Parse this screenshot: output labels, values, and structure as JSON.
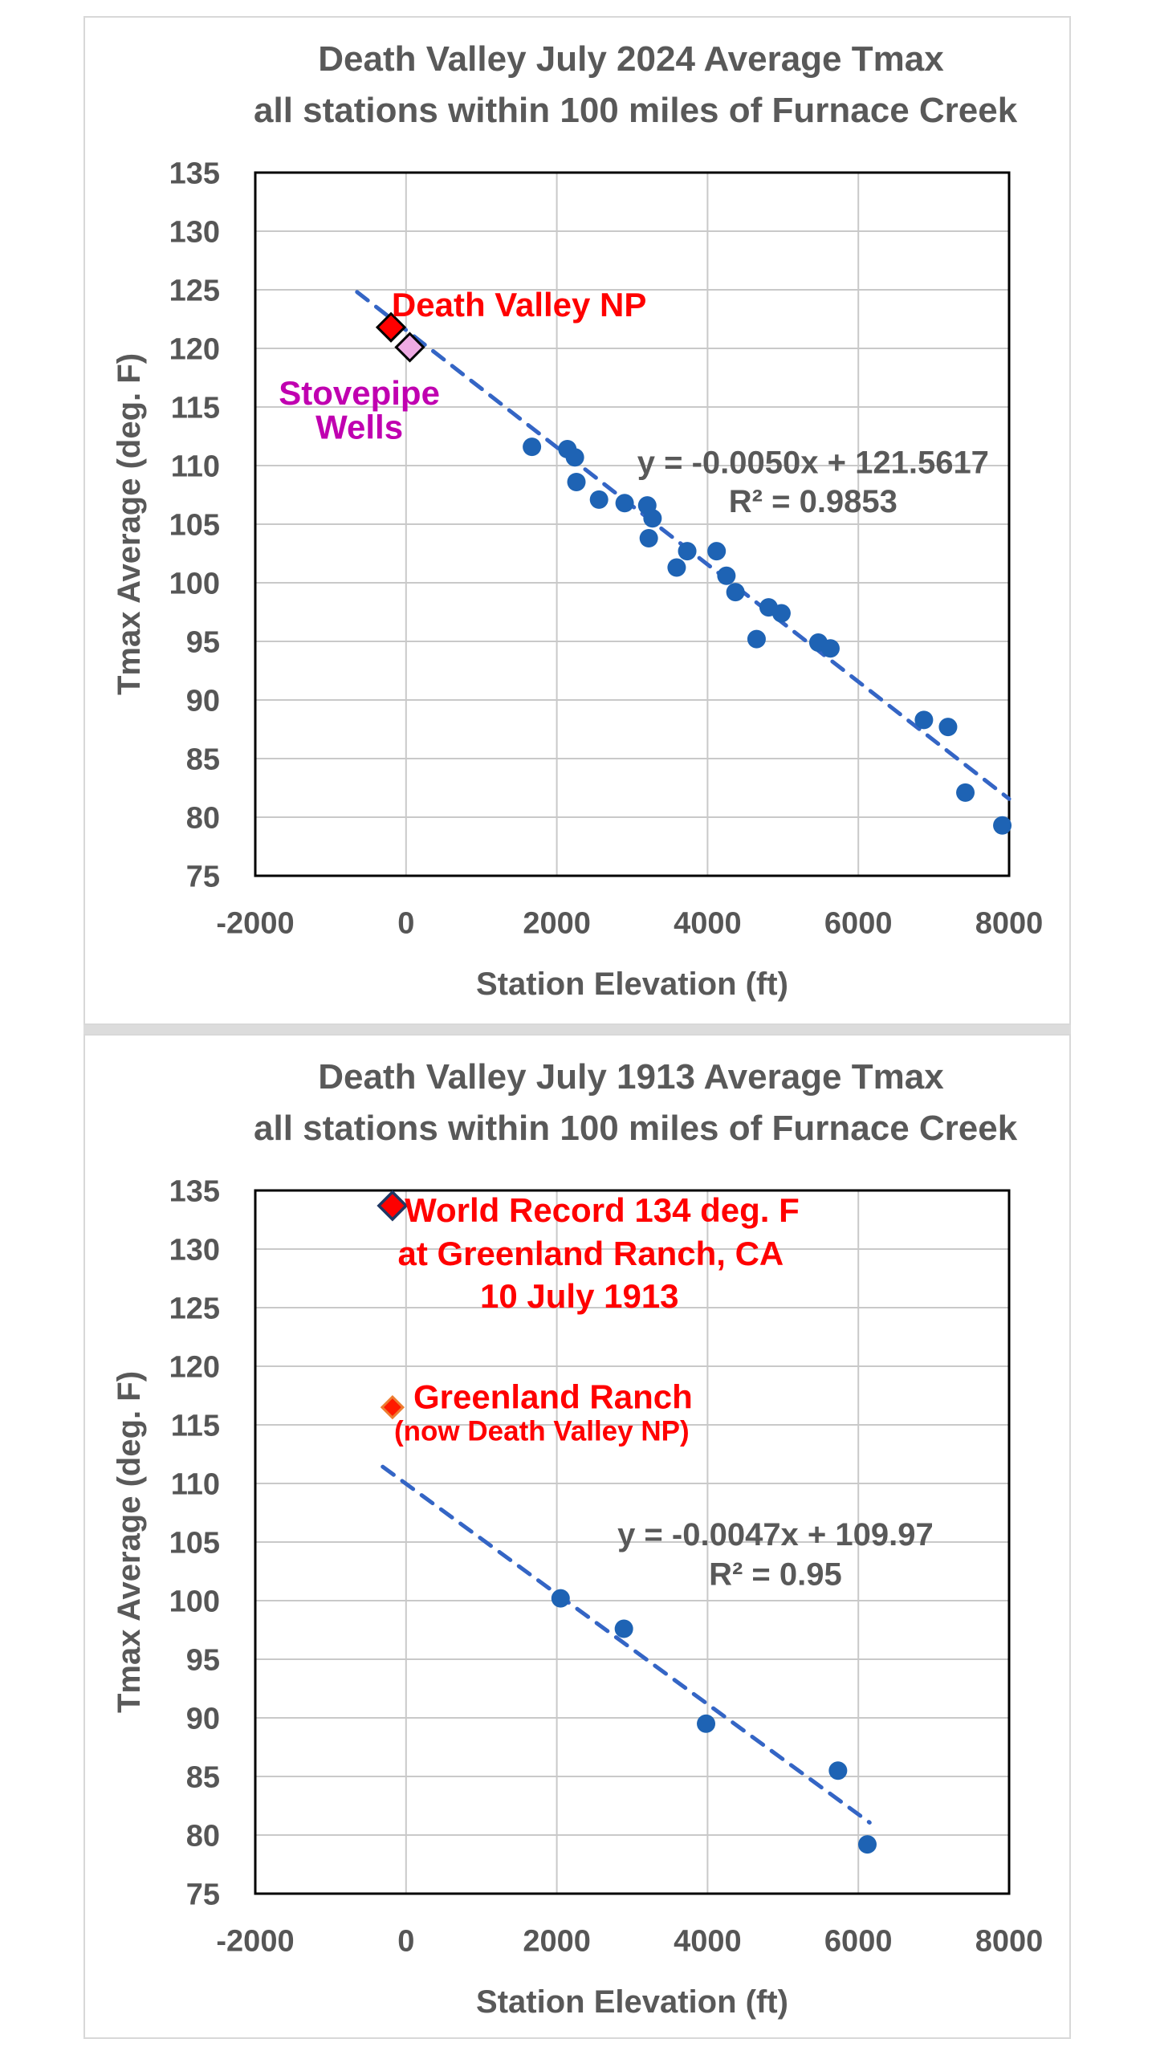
{
  "page": {
    "background": "#ffffff",
    "panel_border_color": "#d8d8d8",
    "divider_color": "#dcdcdc"
  },
  "chart_data": [
    {
      "type": "scatter",
      "title": "Death Valley July 2024 Average Tmax",
      "subtitle": "all stations within 100 miles of Furnace Creek",
      "xlabel": "Station Elevation (ft)",
      "ylabel": "Tmax Average (deg. F)",
      "x_axis": {
        "min": -2000,
        "max": 8000,
        "ticks": [
          -2000,
          0,
          2000,
          4000,
          6000,
          8000
        ]
      },
      "y_axis": {
        "min": 75,
        "max": 135,
        "ticks": [
          75,
          80,
          85,
          90,
          95,
          100,
          105,
          110,
          115,
          120,
          125,
          130,
          135
        ]
      },
      "grid": true,
      "legend": "none",
      "style": {
        "grid_color": "#c9c9c9",
        "border_color": "#000000",
        "tick_color": "#565656",
        "axis_title_color": "#595959"
      },
      "series": [
        {
          "name": "all stations July 2024",
          "marker": "circle",
          "color": "#1e63b4",
          "radius": 11.5,
          "points": [
            [
              1670,
              111.6
            ],
            [
              2140,
              111.4
            ],
            [
              2240,
              110.7
            ],
            [
              2260,
              108.6
            ],
            [
              2560,
              107.1
            ],
            [
              2900,
              106.8
            ],
            [
              3200,
              106.6
            ],
            [
              3220,
              103.8
            ],
            [
              3270,
              105.5
            ],
            [
              3590,
              101.3
            ],
            [
              3730,
              102.7
            ],
            [
              4120,
              102.7
            ],
            [
              4250,
              100.6
            ],
            [
              4370,
              99.2
            ],
            [
              4650,
              95.2
            ],
            [
              4810,
              97.9
            ],
            [
              4980,
              97.4
            ],
            [
              5470,
              94.9
            ],
            [
              5630,
              94.4
            ],
            [
              6870,
              88.3
            ],
            [
              7190,
              87.7
            ],
            [
              7420,
              82.1
            ],
            [
              7910,
              79.3
            ]
          ]
        },
        {
          "name": "Death Valley NP",
          "marker": "diamond",
          "fill": "#ff0000",
          "stroke": "#000000",
          "stroke_width": 3,
          "half_size": 17,
          "points": [
            [
              -200,
              121.8
            ]
          ]
        },
        {
          "name": "Stovepipe Wells",
          "marker": "diamond",
          "fill": "#eeaae3",
          "stroke": "#000000",
          "stroke_width": 3,
          "half_size": 17,
          "points": [
            [
              50,
              120.1
            ]
          ]
        }
      ],
      "trendline": {
        "equation": "y = -0.0050x + 121.5617",
        "r2_label": "R² = 0.9853",
        "slope": -0.005,
        "intercept": 121.5617,
        "r_squared": 0.9853,
        "x_start": -650,
        "x_end": 8000,
        "color": "#3465c5",
        "dash": "17 13",
        "width": 5
      },
      "annotations": [
        {
          "name": "label-death-valley-np",
          "text": "Death Valley NP",
          "color": "#ff0000",
          "font_size": 42,
          "x": 1500,
          "y": 123.75
        },
        {
          "name": "label-stovepipe-line1",
          "text": "Stovepipe",
          "color": "#c000b0",
          "font_size": 42,
          "x": -620,
          "y": 116.2
        },
        {
          "name": "label-stovepipe-line2",
          "text": "Wells",
          "color": "#c000b0",
          "font_size": 42,
          "x": -620,
          "y": 113.3
        },
        {
          "name": "trendline-equation",
          "text": "y = -0.0050x + 121.5617",
          "color": "#595959",
          "font_size": 40,
          "x": 5400,
          "y": 110.3
        },
        {
          "name": "trendline-r2",
          "text": "R² = 0.9853",
          "color": "#595959",
          "font_size": 40,
          "x": 5400,
          "y": 107.0
        }
      ]
    },
    {
      "type": "scatter",
      "title": "Death Valley July 1913 Average Tmax",
      "subtitle": "all stations within 100 miles of Furnace Creek",
      "xlabel": "Station Elevation (ft)",
      "ylabel": "Tmax Average (deg. F)",
      "x_axis": {
        "min": -2000,
        "max": 8000,
        "ticks": [
          -2000,
          0,
          2000,
          4000,
          6000,
          8000
        ]
      },
      "y_axis": {
        "min": 75,
        "max": 135,
        "ticks": [
          75,
          80,
          85,
          90,
          95,
          100,
          105,
          110,
          115,
          120,
          125,
          130,
          135
        ]
      },
      "grid": true,
      "legend": "none",
      "style": {
        "grid_color": "#c9c9c9",
        "border_color": "#000000",
        "tick_color": "#565656",
        "axis_title_color": "#595959"
      },
      "series": [
        {
          "name": "all stations July 1913",
          "marker": "circle",
          "color": "#1e63b4",
          "radius": 11.5,
          "points": [
            [
              2050,
              100.2
            ],
            [
              2890,
              97.6
            ],
            [
              3980,
              89.5
            ],
            [
              5730,
              85.5
            ],
            [
              6120,
              79.2
            ]
          ]
        },
        {
          "name": "World Record 134 deg. F at Greenland Ranch, CA 10 July 1913",
          "marker": "diamond",
          "fill": "#fe0000",
          "stroke": "#1f3864",
          "stroke_width": 3.5,
          "half_size": 17,
          "points": [
            [
              -180,
              133.7
            ]
          ]
        },
        {
          "name": "Greenland Ranch",
          "marker": "diamond",
          "fill": "#ff1a00",
          "stroke": "#ed7d31",
          "stroke_width": 3,
          "half_size": 13,
          "points": [
            [
              -180,
              116.5
            ]
          ]
        }
      ],
      "trendline": {
        "equation": "y = -0.0047x + 109.97",
        "r2_label": "R² = 0.95",
        "slope": -0.0047,
        "intercept": 109.97,
        "r_squared": 0.95,
        "x_start": -310,
        "x_end": 6150,
        "color": "#3465c5",
        "dash": "17 13",
        "width": 5
      },
      "annotations": [
        {
          "name": "label-world-record-line1",
          "text": "World Record 134 deg. F",
          "color": "#ff0000",
          "font_size": 42,
          "x": 2600,
          "y": 133.35
        },
        {
          "name": "label-world-record-line2",
          "text": "at Greenland Ranch, CA",
          "color": "#ff0000",
          "font_size": 42,
          "x": 2450,
          "y": 129.65
        },
        {
          "name": "label-world-record-line3",
          "text": "10 July 1913",
          "color": "#ff0000",
          "font_size": 42,
          "x": 2300,
          "y": 126.0
        },
        {
          "name": "label-greenland-ranch",
          "text": "Greenland Ranch",
          "color": "#ff0000",
          "font_size": 42,
          "x": 1950,
          "y": 117.4
        },
        {
          "name": "label-greenland-ranch-sub",
          "text": "(now Death Valley NP)",
          "color": "#ff0000",
          "font_size": 35,
          "x": 1800,
          "y": 114.5
        },
        {
          "name": "trendline-equation",
          "text": "y = -0.0047x + 109.97",
          "color": "#595959",
          "font_size": 40,
          "x": 4900,
          "y": 105.7
        },
        {
          "name": "trendline-r2",
          "text": "R² = 0.95",
          "color": "#595959",
          "font_size": 40,
          "x": 4900,
          "y": 102.3
        }
      ]
    }
  ]
}
